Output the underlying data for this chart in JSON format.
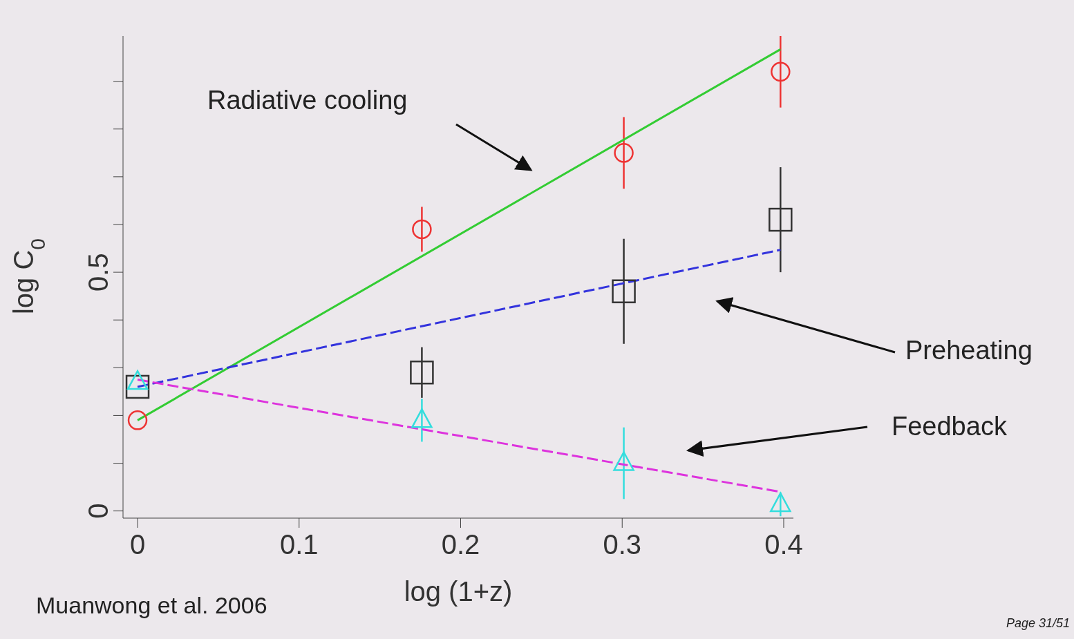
{
  "chart_data": {
    "type": "scatter",
    "xlabel": "log (1+z)",
    "ylabel": "log C$_{0}$",
    "xlim": [
      -0.009,
      0.406
    ],
    "ylim": [
      -0.015,
      0.995
    ],
    "xticks": [
      0,
      0.1,
      0.2,
      0.3,
      0.4
    ],
    "yticks": [
      0,
      {
        "value": 0.1,
        "label": null
      },
      {
        "value": 0.2,
        "label": null
      },
      {
        "value": 0.3,
        "label": null
      },
      {
        "value": 0.4,
        "label": null
      },
      {
        "value": 0.5,
        "label": "0.5"
      },
      {
        "value": 0.6,
        "label": null
      },
      {
        "value": 0.7,
        "label": null
      },
      {
        "value": 0.8,
        "label": null
      },
      {
        "value": 0.9,
        "label": null
      }
    ],
    "series": [
      {
        "marker": "circle",
        "color": "#ee3333",
        "x": [
          0,
          0.176,
          0.301,
          0.398
        ],
        "values": [
          0.19,
          0.59,
          0.75,
          0.92
        ],
        "errors": [
          null,
          0.047,
          0.075,
          0.075
        ]
      },
      {
        "marker": "square",
        "color": "#333333",
        "x": [
          0,
          0.176,
          0.301,
          0.398
        ],
        "values": [
          0.26,
          0.29,
          0.46,
          0.61
        ],
        "errors": [
          null,
          0.053,
          0.11,
          0.11
        ]
      },
      {
        "marker": "triangle",
        "color": "#33dddd",
        "x": [
          0,
          0.176,
          0.301,
          0.398
        ],
        "values": [
          0.27,
          0.19,
          0.1,
          0.014
        ],
        "errors": [
          null,
          0.045,
          0.075,
          0.025
        ]
      },
      {
        "type": "line",
        "line_style": "solid",
        "color": "#33cc33",
        "x": [
          0,
          0.398
        ],
        "values": [
          0.19,
          0.967
        ]
      },
      {
        "type": "line",
        "line_style": "dashed",
        "color": "#3333dd",
        "x": [
          0,
          0.398
        ],
        "values": [
          0.26,
          0.547
        ]
      },
      {
        "type": "line",
        "line_style": "dashed",
        "color": "#dd33dd",
        "x": [
          0,
          0.398
        ],
        "values": [
          0.275,
          0.04
        ]
      }
    ],
    "annotations": [
      "Radiative cooling",
      "Preheating",
      "Feedback",
      "Muanwong et al. 2006",
      "Page 31/51"
    ]
  }
}
